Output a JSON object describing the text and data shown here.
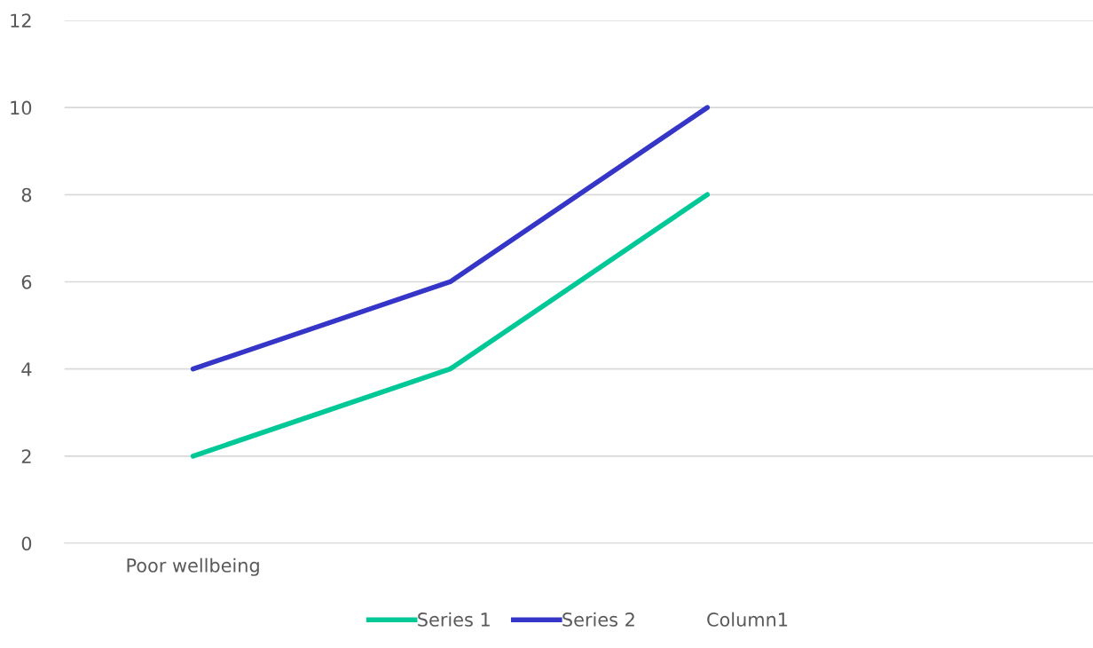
{
  "chart_data": {
    "type": "line",
    "categories": [
      "Poor wellbeing",
      null,
      null,
      null
    ],
    "series": [
      {
        "name": "Series 1",
        "color": "#00c896",
        "values": [
          2,
          4,
          8,
          null
        ]
      },
      {
        "name": "Series 2",
        "color": "#3535c8",
        "values": [
          4,
          6,
          10,
          null
        ]
      },
      {
        "name": "Column1",
        "values": [
          null,
          null,
          null,
          null
        ]
      }
    ],
    "ylim": [
      0,
      12
    ],
    "yticks": [
      0,
      2,
      4,
      6,
      8,
      10,
      12
    ],
    "grid": "y",
    "legend": "bottom",
    "marker": "none",
    "line_style": "solid"
  }
}
